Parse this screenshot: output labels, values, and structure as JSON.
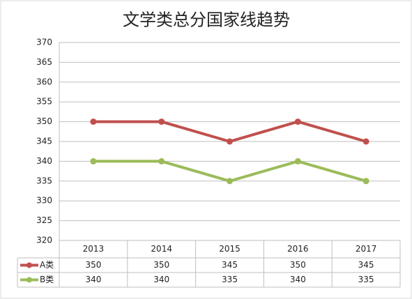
{
  "chart_data": {
    "type": "line",
    "title": "文学类总分国家线趋势",
    "categories": [
      "2013",
      "2014",
      "2015",
      "2016",
      "2017"
    ],
    "series": [
      {
        "name": "A类",
        "color": "#c0504d",
        "values": [
          350,
          350,
          345,
          350,
          345
        ]
      },
      {
        "name": "B类",
        "color": "#9bbb59",
        "values": [
          340,
          340,
          335,
          340,
          335
        ]
      }
    ],
    "ylim": [
      320,
      370
    ],
    "yticks": [
      320,
      325,
      330,
      335,
      340,
      345,
      350,
      355,
      360,
      365,
      370
    ],
    "grid": true
  }
}
